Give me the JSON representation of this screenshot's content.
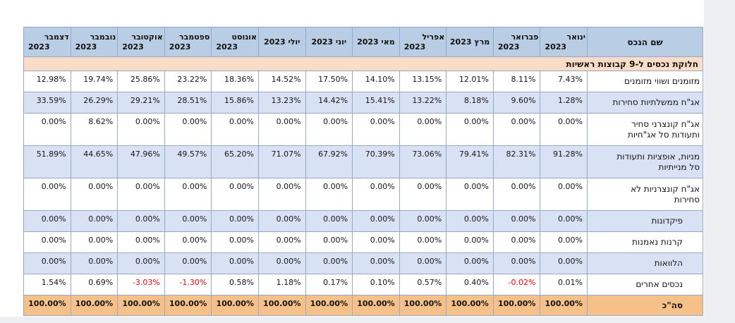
{
  "table": {
    "colors": {
      "header_bg": "#b9cde4",
      "zebra_bg": "#d9e2f4",
      "section_bg": "#fbdcc6",
      "total_bg": "#f5c189",
      "border": "#95a9c7",
      "border_dark": "#7f9db9",
      "negative_text": "#ff0000"
    },
    "header": {
      "asset_col": "שם הנכס",
      "months": [
        [
          "ינואר",
          "2023"
        ],
        [
          "פברואר",
          "2023"
        ],
        [
          "מרץ 2023"
        ],
        [
          "אפריל",
          "2023"
        ],
        [
          "מאי 2023"
        ],
        [
          "יוני 2023"
        ],
        [
          "יולי 2023"
        ],
        [
          "אוגוסט",
          "2023"
        ],
        [
          "ספטמבר",
          "2023"
        ],
        [
          "אוקטובר",
          "2023"
        ],
        [
          "נובמבר",
          "2023"
        ],
        [
          "דצמבר",
          "2023"
        ]
      ]
    },
    "section_title": "חלוקת נכסים ל-9 קבוצות ראשיות",
    "rows": [
      {
        "label_lines": [
          "מזומנים ושווי מזומנים"
        ],
        "indent": false,
        "values": [
          "7.43%",
          "8.11%",
          "12.01%",
          "13.15%",
          "14.10%",
          "17.50%",
          "14.52%",
          "18.36%",
          "23.22%",
          "25.86%",
          "19.74%",
          "12.98%"
        ]
      },
      {
        "label_lines": [
          "אג\"ח ממשלתיות סחירות"
        ],
        "indent": false,
        "values": [
          "1.28%",
          "9.60%",
          "8.18%",
          "13.22%",
          "15.41%",
          "14.42%",
          "13.23%",
          "15.86%",
          "28.51%",
          "29.21%",
          "26.29%",
          "33.59%"
        ]
      },
      {
        "label_lines": [
          "אג\"ח קונצרני סחיר",
          "ותעודות סל אג\"חיות"
        ],
        "indent": false,
        "values": [
          "0.00%",
          "0.00%",
          "0.00%",
          "0.00%",
          "0.00%",
          "0.00%",
          "0.00%",
          "0.00%",
          "0.00%",
          "0.00%",
          "8.62%",
          "0.00%"
        ]
      },
      {
        "label_lines": [
          "מניות, אופציות ותעודות",
          "סל מנייתיות"
        ],
        "indent": false,
        "values": [
          "91.28%",
          "82.31%",
          "79.41%",
          "73.06%",
          "70.39%",
          "67.92%",
          "71.07%",
          "65.20%",
          "49.57%",
          "47.96%",
          "44.65%",
          "51.89%"
        ]
      },
      {
        "label_lines": [
          "אג\"ח קונצרניות לא",
          "סחירות"
        ],
        "indent": false,
        "values": [
          "0.00%",
          "0.00%",
          "0.00%",
          "0.00%",
          "0.00%",
          "0.00%",
          "0.00%",
          "0.00%",
          "0.00%",
          "0.00%",
          "0.00%",
          "0.00%"
        ]
      },
      {
        "label_lines": [
          "פיקדונות"
        ],
        "indent": true,
        "values": [
          "0.00%",
          "0.00%",
          "0.00%",
          "0.00%",
          "0.00%",
          "0.00%",
          "0.00%",
          "0.00%",
          "0.00%",
          "0.00%",
          "0.00%",
          "0.00%"
        ]
      },
      {
        "label_lines": [
          "קרנות נאמנות"
        ],
        "indent": true,
        "values": [
          "0.00%",
          "0.00%",
          "0.00%",
          "0.00%",
          "0.00%",
          "0.00%",
          "0.00%",
          "0.00%",
          "0.00%",
          "0.00%",
          "0.00%",
          "0.00%"
        ]
      },
      {
        "label_lines": [
          "הלוואות"
        ],
        "indent": true,
        "values": [
          "0.00%",
          "0.00%",
          "0.00%",
          "0.00%",
          "0.00%",
          "0.00%",
          "0.00%",
          "0.00%",
          "0.00%",
          "0.00%",
          "0.00%",
          "0.00%"
        ]
      },
      {
        "label_lines": [
          "נכסים אחרים"
        ],
        "indent": true,
        "values": [
          "0.01%",
          "-0.02%",
          "0.40%",
          "0.57%",
          "0.10%",
          "0.17%",
          "1.18%",
          "0.58%",
          "-1.30%",
          "-3.03%",
          "0.69%",
          "1.54%"
        ]
      }
    ],
    "total": {
      "label_lines": [
        "סה\"כ"
      ],
      "indent": true,
      "values": [
        "100.00%",
        "100.00%",
        "100.00%",
        "100.00%",
        "100.00%",
        "100.00%",
        "100.00%",
        "100.00%",
        "100.00%",
        "100.00%",
        "100.00%",
        "100.00%"
      ]
    }
  }
}
